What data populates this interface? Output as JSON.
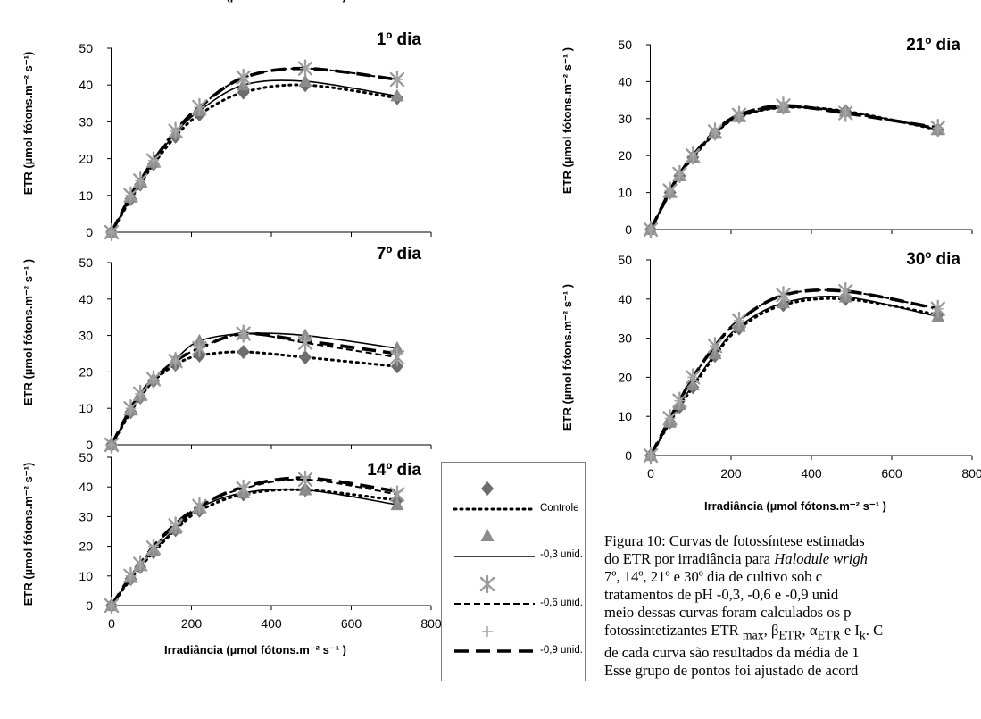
{
  "chart_data": [
    {
      "type": "line",
      "title": "1º dia",
      "xlabel": "Irradiância (µmol fótons.m⁻² s⁻¹ )",
      "ylabel": "ETR (µmol fótons.m⁻² s⁻¹)",
      "xlim": [
        0,
        800
      ],
      "ylim": [
        0,
        50
      ],
      "x_ticks": [
        0,
        200,
        400,
        600,
        800
      ],
      "y_ticks": [
        0,
        10,
        20,
        30,
        40,
        50
      ],
      "show_x_labels": false,
      "x": [
        0,
        48,
        72,
        105,
        160,
        220,
        330,
        485,
        715
      ],
      "series": [
        {
          "name": "Controle",
          "values": [
            0,
            9,
            13,
            18.5,
            26,
            32,
            38,
            40,
            36.5
          ]
        },
        {
          "name": "-0,3 unid.",
          "values": [
            0,
            9.5,
            13.5,
            19,
            27,
            33,
            40,
            41,
            37
          ]
        },
        {
          "name": "-0,6 unid.",
          "values": [
            0,
            10,
            14,
            19.5,
            27.5,
            34,
            42,
            44.5,
            41.5
          ]
        },
        {
          "name": "-0,9 unid.",
          "values": [
            0,
            10,
            14,
            19.5,
            27.5,
            34,
            42,
            44.5,
            41.5
          ]
        }
      ]
    },
    {
      "type": "line",
      "title": "7º dia",
      "xlabel": "",
      "ylabel": "ETR (µmol fótons.m⁻² s⁻¹ )",
      "xlim": [
        0,
        800
      ],
      "ylim": [
        0,
        50
      ],
      "x_ticks": [
        0,
        200,
        400,
        600,
        800
      ],
      "y_ticks": [
        0,
        10,
        20,
        30,
        40,
        50
      ],
      "show_x_labels": false,
      "x": [
        0,
        48,
        72,
        105,
        160,
        220,
        330,
        485,
        715
      ],
      "series": [
        {
          "name": "Controle",
          "values": [
            0,
            9,
            13,
            17.5,
            22,
            24.5,
            25.5,
            24,
            21.5
          ]
        },
        {
          "name": "-0,3 unid.",
          "values": [
            0,
            9.5,
            13.5,
            18,
            23.5,
            28.5,
            30.5,
            30,
            26.5
          ]
        },
        {
          "name": "-0,6 unid.",
          "values": [
            0,
            10,
            14,
            18,
            23,
            26.5,
            30.5,
            28,
            24
          ]
        },
        {
          "name": "-0,9 unid.",
          "values": [
            0,
            10,
            14,
            18,
            23,
            26.5,
            30.5,
            28.5,
            25
          ]
        }
      ]
    },
    {
      "type": "line",
      "title": "14º dia",
      "xlabel": "Irradiância (µmol fótons.m⁻² s⁻¹ )",
      "ylabel": "ETR (µmol fótons.m⁻² s⁻¹)",
      "xlim": [
        0,
        800
      ],
      "ylim": [
        0,
        50
      ],
      "x_ticks": [
        0,
        200,
        400,
        600,
        800
      ],
      "y_ticks": [
        0,
        10,
        20,
        30,
        40,
        50
      ],
      "show_x_labels": true,
      "x": [
        0,
        48,
        72,
        105,
        160,
        220,
        330,
        485,
        715
      ],
      "series": [
        {
          "name": "Controle",
          "values": [
            0,
            9,
            13,
            18,
            25.5,
            32,
            37.5,
            39,
            35.5
          ]
        },
        {
          "name": "-0,3 unid.",
          "values": [
            0,
            9.5,
            13.5,
            18.5,
            26,
            33,
            38,
            39,
            34
          ]
        },
        {
          "name": "-0,6 unid.",
          "values": [
            0,
            10,
            14,
            19.5,
            27,
            33.5,
            39.5,
            42.5,
            37.5
          ]
        },
        {
          "name": "-0,9 unid.",
          "values": [
            0,
            10,
            14,
            20,
            27.5,
            33.5,
            40,
            43,
            38.5
          ]
        }
      ]
    },
    {
      "type": "line",
      "title": "21º dia",
      "xlabel": "",
      "ylabel": "ETR (µmol fótons.m⁻² s⁻¹ )",
      "xlim": [
        0,
        800
      ],
      "ylim": [
        0,
        50
      ],
      "x_ticks": [
        0,
        200,
        400,
        600,
        800
      ],
      "y_ticks": [
        0,
        10,
        20,
        30,
        40,
        50
      ],
      "show_x_labels": false,
      "x": [
        0,
        48,
        72,
        105,
        160,
        220,
        330,
        485,
        715
      ],
      "series": [
        {
          "name": "Controle",
          "values": [
            0,
            10,
            14.5,
            19.5,
            26,
            30.5,
            33,
            32,
            27
          ]
        },
        {
          "name": "-0,3 unid.",
          "values": [
            0,
            10,
            14.5,
            19.5,
            26,
            30.5,
            33,
            32,
            27
          ]
        },
        {
          "name": "-0,6 unid.",
          "values": [
            0,
            10.5,
            15,
            20,
            26.5,
            31,
            33.5,
            31.5,
            27.5
          ]
        },
        {
          "name": "-0,9 unid.",
          "values": [
            0,
            10.5,
            15,
            20,
            26.5,
            31,
            33.5,
            31.5,
            27.5
          ]
        }
      ]
    },
    {
      "type": "line",
      "title": "30º dia",
      "xlabel": "Irradiância (µmol fótons.m⁻² s⁻¹ )",
      "ylabel": "ETR (µmol fótons.m⁻² s⁻¹ )",
      "xlim": [
        0,
        800
      ],
      "ylim": [
        0,
        50
      ],
      "x_ticks": [
        0,
        200,
        400,
        600,
        800
      ],
      "y_ticks": [
        0,
        10,
        20,
        30,
        40,
        50
      ],
      "show_x_labels": true,
      "x": [
        0,
        48,
        72,
        105,
        160,
        220,
        330,
        485,
        715
      ],
      "series": [
        {
          "name": "Controle",
          "values": [
            0,
            8.5,
            12.5,
            17.5,
            25.5,
            32.5,
            38.5,
            40,
            36
          ]
        },
        {
          "name": "-0,3 unid.",
          "values": [
            0,
            8.5,
            13,
            18,
            26,
            33,
            39,
            40.5,
            35.5
          ]
        },
        {
          "name": "-0,6 unid.",
          "values": [
            0,
            9.5,
            14,
            20,
            28,
            34.5,
            41,
            42,
            37.5
          ]
        },
        {
          "name": "-0,9 unid.",
          "values": [
            0,
            9.5,
            14,
            20,
            28,
            34.5,
            41,
            42,
            37.5
          ]
        }
      ]
    }
  ],
  "legend": {
    "items": [
      {
        "label": "Controle",
        "marker": "diamond"
      },
      {
        "label": "-0,3 unid.",
        "marker": "triangle"
      },
      {
        "label": "-0,6 unid.",
        "marker": "star"
      },
      {
        "label": "-0,9 unid.",
        "marker": "plus"
      }
    ]
  },
  "colors": {
    "controle": "#6d6d6d",
    "minus03": "#8b8b8b",
    "minus06": "#9a9a9a",
    "minus09": "#a6a6a6",
    "lines": "#000000"
  },
  "caption_lines": [
    "Figura 10: Curvas de fotossíntese estimadas",
    "do ETR por irradiância para Halodule wrigh",
    "7º, 14º, 21º e 30º dia de cultivo sob c",
    "tratamentos de pH -0,3, -0,6 e -0,9 unid",
    "meio dessas curvas foram calculados os p",
    "fotossintetizantes ETR max, βETR, αETR e Ik. C",
    "de cada curva são resultados da média de 1",
    "Esse grupo de pontos foi ajustado de acord"
  ]
}
